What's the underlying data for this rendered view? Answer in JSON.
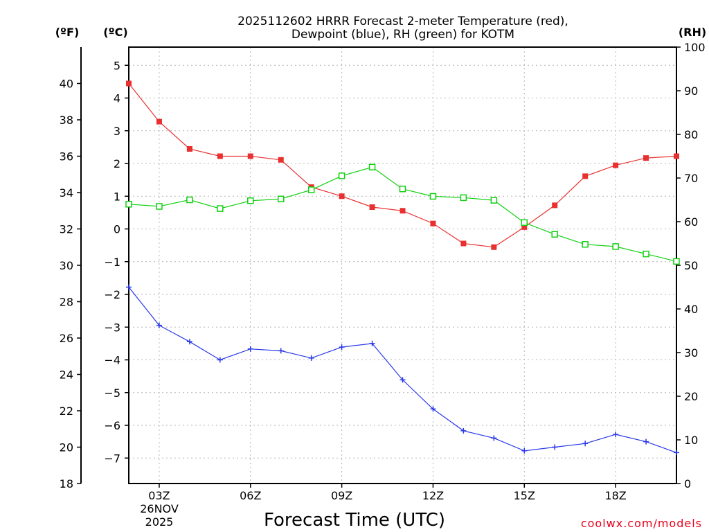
{
  "chart_data": {
    "type": "line",
    "title_line1": "2025112602 HRRR Forecast 2-meter Temperature (red),",
    "title_line2": "Dewpoint (blue), RH (green) for KOTM",
    "xlabel": "Forecast Time (UTC)",
    "credit": "coolwx.com/models",
    "units": {
      "f": "(ºF)",
      "c": "(ºC)",
      "rh": "(RH)"
    },
    "date_label": [
      "26NOV",
      "2025"
    ],
    "hours": [
      2,
      3,
      4,
      5,
      6,
      7,
      8,
      9,
      10,
      11,
      12,
      13,
      14,
      15,
      16,
      17,
      18,
      19,
      20
    ],
    "x_ticks": [
      {
        "hour": 3,
        "label": "03Z"
      },
      {
        "hour": 6,
        "label": "06Z"
      },
      {
        "hour": 9,
        "label": "09Z"
      },
      {
        "hour": 12,
        "label": "12Z"
      },
      {
        "hour": 15,
        "label": "15Z"
      },
      {
        "hour": 18,
        "label": "18Z"
      }
    ],
    "xlim": [
      2,
      20
    ],
    "f_axis": {
      "range": [
        18,
        42
      ],
      "ticks": [
        18,
        20,
        22,
        24,
        26,
        28,
        30,
        32,
        34,
        36,
        38,
        40
      ]
    },
    "c_axis": {
      "ticks": [
        5,
        4,
        3,
        2,
        1,
        0,
        -1,
        -2,
        -3,
        -4,
        -5,
        -6,
        -7
      ]
    },
    "rh_axis": {
      "range": [
        0,
        100
      ],
      "ticks": [
        0,
        10,
        20,
        30,
        40,
        50,
        60,
        70,
        80,
        90,
        100
      ]
    },
    "series": [
      {
        "name": "2-meter Temperature",
        "units": "F",
        "color": "#e83030",
        "marker": "filled-square",
        "values": [
          40.0,
          37.9,
          36.4,
          36.0,
          36.0,
          35.8,
          34.3,
          33.8,
          33.2,
          33.0,
          32.3,
          31.2,
          31.0,
          32.1,
          33.3,
          34.9,
          35.5,
          35.9,
          36.0
        ]
      },
      {
        "name": "Dewpoint",
        "units": "F",
        "color": "#2838e8",
        "marker": "plus",
        "values": [
          28.8,
          26.7,
          25.8,
          24.8,
          25.4,
          25.3,
          24.9,
          25.5,
          25.7,
          23.7,
          22.1,
          20.9,
          20.5,
          19.8,
          20.0,
          20.2,
          20.7,
          20.3,
          19.7
        ]
      },
      {
        "name": "RH",
        "units": "%",
        "color": "#10d010",
        "marker": "open-square",
        "values": [
          64,
          63.5,
          65,
          63,
          64.8,
          65.2,
          67.3,
          70.5,
          72.5,
          67.5,
          65.8,
          65.5,
          64.9,
          59.8,
          57.1,
          54.8,
          54.3,
          52.6,
          50.9
        ]
      }
    ],
    "grid": true
  }
}
